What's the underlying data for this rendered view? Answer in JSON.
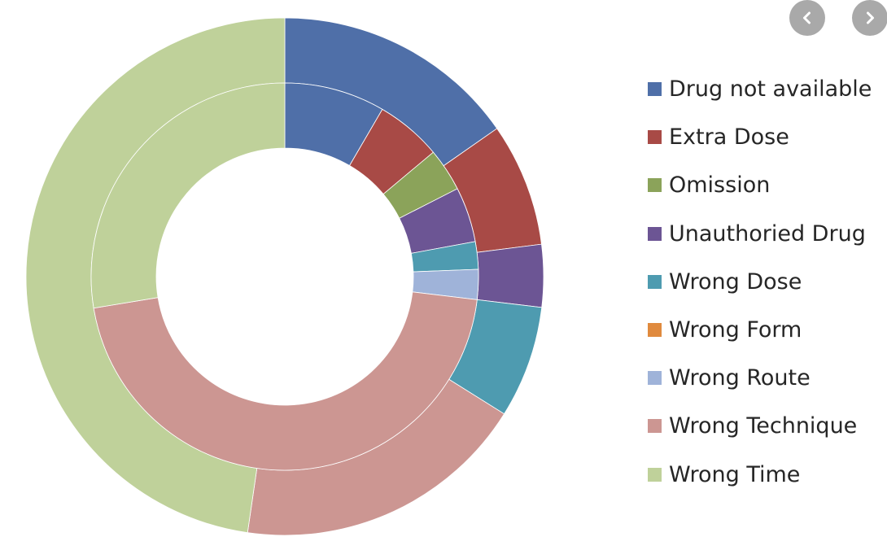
{
  "nav": {
    "prev_icon": "chevron-left-icon",
    "next_icon": "chevron-right-icon"
  },
  "chart_data": {
    "type": "pie",
    "subtype": "double-donut",
    "title": "",
    "legend_position": "right",
    "categories": [
      "Drug not available",
      "Extra Dose",
      "Omission",
      "Unauthoried Drug",
      "Wrong Dose",
      "Wrong Form",
      "Wrong Route",
      "Wrong Technique",
      "Wrong Time"
    ],
    "colors": [
      "#4f6fa8",
      "#a84a46",
      "#8ba35a",
      "#6c5594",
      "#4e9bb0",
      "#e08a3e",
      "#9fb3d9",
      "#cc9692",
      "#bfd19a"
    ],
    "series": [
      {
        "ring": "outer",
        "values": [
          15.3,
          7.7,
          0,
          3.9,
          7.0,
          0,
          0,
          18.4,
          47.7
        ]
      },
      {
        "ring": "inner",
        "values": [
          8.4,
          5.5,
          3.6,
          4.6,
          2.3,
          0,
          2.5,
          45.5,
          27.6
        ]
      }
    ]
  }
}
